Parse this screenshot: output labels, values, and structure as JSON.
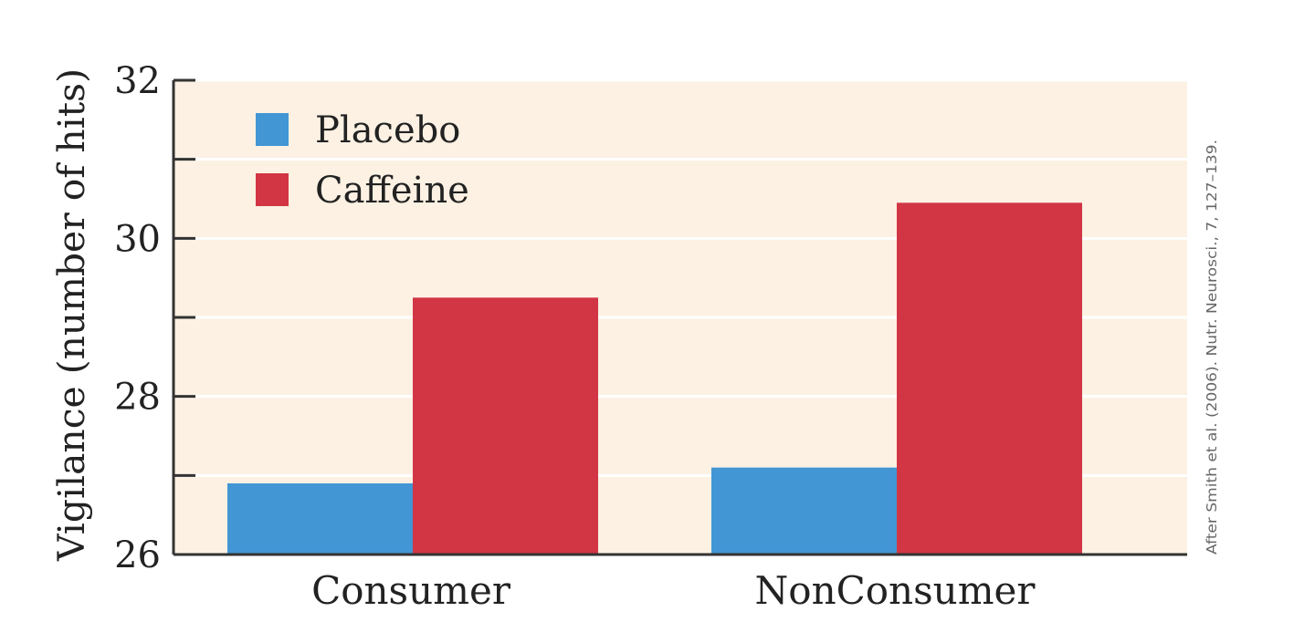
{
  "chart_data": {
    "type": "bar",
    "categories": [
      "Consumer",
      "NonConsumer"
    ],
    "series": [
      {
        "name": "Placebo",
        "values": [
          26.9,
          27.1
        ],
        "color": "#4296d3"
      },
      {
        "name": "Caffeine",
        "values": [
          29.25,
          30.45
        ],
        "color": "#d23544"
      }
    ],
    "ylabel": "Vigilance (number of hits)",
    "xlabel": "",
    "ylim": [
      26,
      32
    ],
    "yticks": [
      26,
      27,
      28,
      29,
      30,
      31,
      32
    ],
    "ytick_labels": [
      {
        "value": 26,
        "label": "26"
      },
      {
        "value": 28,
        "label": "28"
      },
      {
        "value": 30,
        "label": "30"
      },
      {
        "value": 32,
        "label": "32"
      }
    ],
    "grid": true,
    "legend": "top-left",
    "background_color": "#fcf1e3",
    "credit": "After Smith et al. (2006). Nutr. Neurosci., 7, 127–139."
  }
}
